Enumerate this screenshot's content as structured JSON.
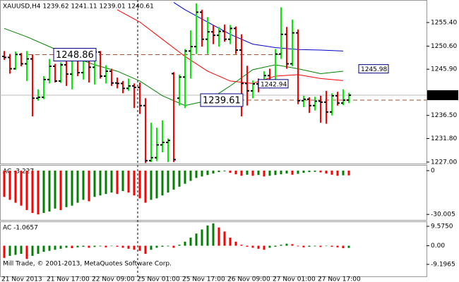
{
  "chart_data": [
    {
      "type": "ohlc",
      "title": "XAUUSD,H4  1239.62 1241.11 1239.01 1240.61",
      "categories": [
        "21 Nov 2013",
        null,
        null,
        null,
        null,
        null,
        null,
        null,
        "21 Nov 17:00",
        null,
        null,
        null,
        null,
        null,
        null,
        null,
        "22 Nov 09:00",
        null,
        null,
        null,
        null,
        null,
        null,
        null,
        "25 Nov 01:00",
        null,
        null,
        null,
        null,
        null,
        null,
        null,
        "25 Nov 17:00",
        null,
        null,
        null,
        null,
        null,
        null,
        null,
        "26 Nov 09:00",
        null,
        null,
        null,
        null,
        null,
        null,
        null,
        "27 Nov 01:00",
        null,
        null,
        null,
        null,
        null,
        null,
        null,
        "27 Nov 17:00",
        null,
        null,
        null,
        null,
        null
      ],
      "open": [
        1248.5,
        1248.3,
        1246.0,
        1248.9,
        1247.0,
        1248.0,
        1240.0,
        1240.2,
        1243.8,
        1246.5,
        1243.5,
        1246.8,
        1244.9,
        1248.0,
        1245.2,
        1248.6,
        1246.3,
        1249.4,
        1244.5,
        1245.5,
        1243.1,
        1243.0,
        1242.0,
        1242.5,
        1242.2,
        1238.5,
        1227.3,
        1227.9,
        1230.5,
        1231.0,
        1245.0,
        1240.0,
        1244.3,
        1249.6,
        1250.5,
        1257.5,
        1252.0,
        1253.5,
        1252.8,
        1253.6,
        1252.0,
        1254.2,
        1249.8,
        1243.0,
        1241.5,
        1242.9,
        1242.4,
        1244.6,
        1243.5,
        1249.0,
        1253.0,
        1247.0,
        1253.3,
        1239.5,
        1239.8,
        1238.5,
        1239.4,
        1239.2,
        1237.2,
        1240.5,
        1239.0,
        1239.62
      ],
      "high": [
        1249.6,
        1249.0,
        1249.5,
        1249.2,
        1249.6,
        1248.9,
        1241.8,
        1244.5,
        1248.0,
        1247.0,
        1247.3,
        1247.5,
        1249.5,
        1249.6,
        1249.0,
        1248.9,
        1250.0,
        1249.6,
        1246.7,
        1246.0,
        1244.2,
        1243.5,
        1244.0,
        1243.0,
        1243.2,
        1240.0,
        1235.0,
        1234.0,
        1235.5,
        1231.8,
        1245.3,
        1244.8,
        1250.0,
        1253.8,
        1259.3,
        1258.0,
        1256.5,
        1254.8,
        1254.5,
        1255.0,
        1254.9,
        1254.6,
        1253.0,
        1246.6,
        1243.6,
        1244.0,
        1245.5,
        1246.0,
        1250.0,
        1258.5,
        1254.5,
        1256.0,
        1254.0,
        1240.5,
        1240.2,
        1240.3,
        1240.5,
        1241.5,
        1241.0,
        1241.3,
        1241.8,
        1241.11
      ],
      "low": [
        1247.8,
        1245.0,
        1245.8,
        1246.5,
        1243.5,
        1236.3,
        1239.5,
        1239.8,
        1243.0,
        1243.2,
        1243.1,
        1242.5,
        1241.8,
        1244.5,
        1243.8,
        1243.2,
        1242.8,
        1244.0,
        1243.0,
        1242.5,
        1242.0,
        1241.0,
        1241.5,
        1238.0,
        1236.8,
        1226.8,
        1227.0,
        1227.2,
        1229.0,
        1227.0,
        1227.0,
        1238.5,
        1238.0,
        1244.0,
        1249.0,
        1250.5,
        1249.0,
        1251.0,
        1250.5,
        1251.5,
        1251.0,
        1249.0,
        1236.3,
        1238.5,
        1240.0,
        1241.2,
        1242.0,
        1242.0,
        1243.0,
        1248.0,
        1246.0,
        1246.5,
        1238.8,
        1238.2,
        1237.0,
        1237.5,
        1235.0,
        1234.8,
        1236.5,
        1238.5,
        1238.6,
        1239.01
      ],
      "close": [
        1248.3,
        1246.0,
        1248.9,
        1247.0,
        1248.0,
        1240.0,
        1240.2,
        1243.8,
        1246.5,
        1243.5,
        1246.8,
        1244.9,
        1248.0,
        1245.2,
        1248.6,
        1246.3,
        1249.4,
        1244.5,
        1245.5,
        1243.1,
        1243.0,
        1242.0,
        1242.5,
        1242.2,
        1238.5,
        1227.3,
        1227.9,
        1230.5,
        1231.0,
        1231.4,
        1227.5,
        1244.3,
        1249.6,
        1250.5,
        1257.5,
        1252.0,
        1253.5,
        1252.8,
        1253.6,
        1252.0,
        1254.2,
        1249.8,
        1243.0,
        1241.5,
        1242.9,
        1242.4,
        1244.6,
        1243.5,
        1249.0,
        1253.0,
        1247.0,
        1253.3,
        1239.5,
        1239.8,
        1238.5,
        1239.4,
        1239.2,
        1237.2,
        1240.5,
        1239.0,
        1239.6,
        1240.61
      ],
      "up_color": "#00ee00",
      "down_color": "#ff0000",
      "tick_color": "#000000",
      "lines": [
        {
          "color": "#ff0000",
          "x": [
            20,
            24,
            28,
            32,
            36,
            40,
            44,
            48,
            52,
            56,
            60
          ],
          "values": [
            1258.0,
            1255.5,
            1252.0,
            1248.5,
            1245.5,
            1243.5,
            1243.0,
            1244.5,
            1244.8,
            1244.0,
            1243.6
          ]
        },
        {
          "color": "#008000",
          "x": [
            0,
            4,
            8,
            12,
            16,
            20,
            24,
            28,
            32,
            36,
            40,
            44,
            48,
            52,
            56,
            60
          ],
          "values": [
            1254.2,
            1252.5,
            1250.5,
            1248.5,
            1246.8,
            1245.5,
            1243.5,
            1240.5,
            1238.5,
            1239.5,
            1242.5,
            1245.8,
            1246.8,
            1246.0,
            1245.0,
            1245.5
          ]
        },
        {
          "color": "#0000cc",
          "x": [
            30,
            32,
            36,
            40,
            44,
            48,
            52,
            56,
            60
          ],
          "values": [
            1259.5,
            1258.0,
            1255.5,
            1253.0,
            1251.0,
            1250.3,
            1249.9,
            1249.8,
            1249.6
          ]
        }
      ],
      "levels": [
        1248.86,
        1239.61
      ],
      "level_color": "#a0522d",
      "price_labels": [
        1242.94,
        1245.98
      ],
      "current_price": 1240.61,
      "ylim": [
        1226.7,
        1259.7
      ],
      "yticks": [
        {
          "value": 1255.4,
          "label": "1255.40"
        },
        {
          "value": 1250.6,
          "label": "1250.60"
        },
        {
          "value": 1245.9,
          "label": "1245.90"
        },
        {
          "value": 1236.5,
          "label": "1236.50"
        },
        {
          "value": 1231.8,
          "label": "1231.80"
        },
        {
          "value": 1227.0,
          "label": "1227.00"
        }
      ]
    },
    {
      "type": "bar",
      "title": "AC -3.227",
      "values": [
        -18,
        -20,
        -22,
        -24,
        -27,
        -29,
        -30,
        -29,
        -28,
        -26,
        -27,
        -25,
        -24,
        -22,
        -20,
        -21,
        -18,
        -17,
        -16,
        -15,
        -16,
        -14,
        -15,
        -17,
        -19,
        -22,
        -20,
        -19,
        -17,
        -15,
        -13,
        -11,
        -9,
        -7,
        -5,
        -4,
        -3,
        -2,
        -1,
        -0.5,
        -1.5,
        -2.5,
        -3.5,
        -2.8,
        -3.5,
        -3,
        -4,
        -3.5,
        -3,
        -2.5,
        -2,
        -2.8,
        -2.2,
        -1.5,
        -1,
        -0.8,
        -1.2,
        -2,
        -2.8,
        -3.5,
        -3.2,
        -3.227
      ],
      "up_color": "#008000",
      "down_color": "#ff0000",
      "ylim": [
        -33.8,
        3.4
      ],
      "yticks": [
        0,
        -30.005
      ]
    },
    {
      "type": "bar",
      "title": "AC -1.0657",
      "values": [
        -6,
        -5,
        -4.5,
        -4,
        -6.5,
        -5,
        -4,
        -3,
        -2.5,
        -2,
        -1.5,
        -1,
        -1.2,
        -0.8,
        -0.5,
        -1,
        -0.6,
        -0.3,
        -0.8,
        -0.2,
        -0.5,
        -1,
        -1.5,
        -2,
        -2.5,
        -4,
        -2,
        -1,
        -0.5,
        -0.3,
        -1,
        0.5,
        2,
        4,
        6,
        8,
        10,
        11,
        9,
        7,
        4,
        2,
        0.5,
        -0.5,
        -1,
        -1.5,
        -2,
        -1,
        -0.5,
        0.5,
        1,
        0.8,
        -0.3,
        -0.8,
        -0.5,
        -0.3,
        -0.6,
        -0.2,
        -0.5,
        -0.8,
        -1.2,
        -1.0657
      ],
      "up_color": "#008000",
      "down_color": "#ff0000",
      "ylim": [
        -15.1,
        11.66
      ],
      "yticks": [
        {
          "value": 9.575,
          "label": "9.5750"
        },
        {
          "value": 0,
          "label": "0.00"
        },
        -9.1965
      ]
    }
  ],
  "footer": "Mill Trade, © 2001-2013, MetaQuotes Software Corp."
}
